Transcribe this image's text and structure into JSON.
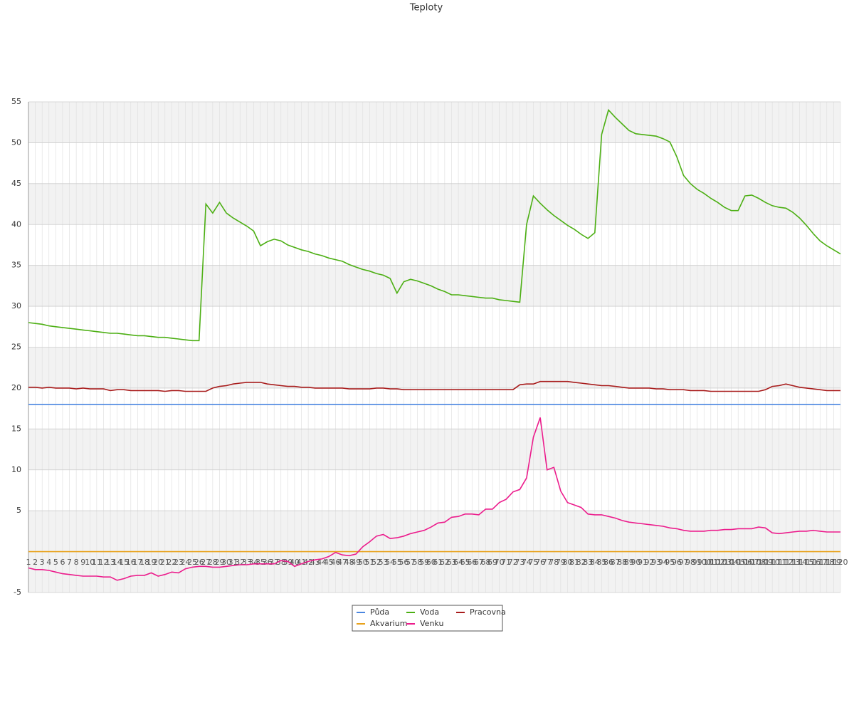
{
  "chart_data": {
    "type": "line",
    "title": "Teploty",
    "categories": [
      1,
      2,
      3,
      4,
      5,
      6,
      7,
      8,
      9,
      10,
      11,
      12,
      13,
      14,
      15,
      16,
      17,
      18,
      19,
      20,
      21,
      22,
      23,
      24,
      25,
      26,
      27,
      28,
      29,
      30,
      31,
      32,
      33,
      34,
      35,
      36,
      37,
      38,
      39,
      40,
      41,
      42,
      43,
      44,
      45,
      46,
      47,
      48,
      49,
      50,
      51,
      52,
      53,
      54,
      55,
      56,
      57,
      58,
      59,
      60,
      61,
      62,
      63,
      64,
      65,
      66,
      67,
      68,
      69,
      70,
      71,
      72,
      73,
      74,
      75,
      76,
      77,
      78,
      79,
      80,
      81,
      82,
      83,
      84,
      85,
      86,
      87,
      88,
      89,
      90,
      91,
      92,
      93,
      94,
      95,
      96,
      97,
      98,
      99,
      100,
      101,
      102,
      103,
      104,
      105,
      106,
      107,
      108,
      109,
      110,
      111,
      112,
      113,
      114,
      115,
      116,
      117,
      118,
      119,
      120
    ],
    "ylim": [
      -5,
      55
    ],
    "yticks": [
      -5,
      5,
      10,
      15,
      20,
      25,
      30,
      35,
      40,
      45,
      50,
      55
    ],
    "grid": true,
    "legend": "bottom",
    "series": [
      {
        "name": "Půda",
        "color": "#4a86e0",
        "values": [
          18,
          18,
          18,
          18,
          18,
          18,
          18,
          18,
          18,
          18,
          18,
          18,
          18,
          18,
          18,
          18,
          18,
          18,
          18,
          18,
          18,
          18,
          18,
          18,
          18,
          18,
          18,
          18,
          18,
          18,
          18,
          18,
          18,
          18,
          18,
          18,
          18,
          18,
          18,
          18,
          18,
          18,
          18,
          18,
          18,
          18,
          18,
          18,
          18,
          18,
          18,
          18,
          18,
          18,
          18,
          18,
          18,
          18,
          18,
          18,
          18,
          18,
          18,
          18,
          18,
          18,
          18,
          18,
          18,
          18,
          18,
          18,
          18,
          18,
          18,
          18,
          18,
          18,
          18,
          18,
          18,
          18,
          18,
          18,
          18,
          18,
          18,
          18,
          18,
          18,
          18,
          18,
          18,
          18,
          18,
          18,
          18,
          18,
          18,
          18,
          18,
          18,
          18,
          18,
          18,
          18,
          18,
          18,
          18,
          18,
          18,
          18,
          18,
          18,
          18,
          18,
          18,
          18,
          18,
          18
        ]
      },
      {
        "name": "Voda",
        "color": "#4caf13",
        "values": [
          28,
          27.9,
          27.8,
          27.6,
          27.5,
          27.4,
          27.3,
          27.2,
          27.1,
          27,
          26.9,
          26.8,
          26.7,
          26.7,
          26.6,
          26.5,
          26.4,
          26.4,
          26.3,
          26.2,
          26.2,
          26.1,
          26,
          25.9,
          25.8,
          25.8,
          42.5,
          41.4,
          42.7,
          41.4,
          40.8,
          40.3,
          39.8,
          39.2,
          37.4,
          37.9,
          38.2,
          38,
          37.5,
          37.2,
          36.9,
          36.7,
          36.4,
          36.2,
          35.9,
          35.7,
          35.5,
          35.1,
          34.8,
          34.5,
          34.3,
          34,
          33.8,
          33.4,
          31.6,
          33,
          33.3,
          33.1,
          32.8,
          32.5,
          32.1,
          31.8,
          31.4,
          31.4,
          31.3,
          31.2,
          31.1,
          31,
          31,
          30.8,
          30.7,
          30.6,
          30.5,
          40,
          43.5,
          42.6,
          41.8,
          41.1,
          40.5,
          39.9,
          39.4,
          38.8,
          38.3,
          39,
          51,
          54,
          53.1,
          52.3,
          51.5,
          51.1,
          51,
          50.9,
          50.8,
          50.5,
          50.1,
          48.3,
          46,
          45,
          44.3,
          43.8,
          43.2,
          42.7,
          42.1,
          41.7,
          41.7,
          43.5,
          43.6,
          43.2,
          42.7,
          42.3,
          42.1,
          42,
          41.5,
          40.8,
          39.9,
          38.9,
          38,
          37.4,
          36.9,
          36.4
        ]
      },
      {
        "name": "Pracovna",
        "color": "#a81c1c",
        "values": [
          20.1,
          20.1,
          20,
          20.1,
          20,
          20,
          20,
          19.9,
          20,
          19.9,
          19.9,
          19.9,
          19.7,
          19.8,
          19.8,
          19.7,
          19.7,
          19.7,
          19.7,
          19.7,
          19.6,
          19.7,
          19.7,
          19.6,
          19.6,
          19.6,
          19.6,
          20,
          20.2,
          20.3,
          20.5,
          20.6,
          20.7,
          20.7,
          20.7,
          20.5,
          20.4,
          20.3,
          20.2,
          20.2,
          20.1,
          20.1,
          20,
          20,
          20,
          20,
          20,
          19.9,
          19.9,
          19.9,
          19.9,
          20,
          20,
          19.9,
          19.9,
          19.8,
          19.8,
          19.8,
          19.8,
          19.8,
          19.8,
          19.8,
          19.8,
          19.8,
          19.8,
          19.8,
          19.8,
          19.8,
          19.8,
          19.8,
          19.8,
          19.8,
          20.4,
          20.5,
          20.5,
          20.8,
          20.8,
          20.8,
          20.8,
          20.8,
          20.7,
          20.6,
          20.5,
          20.4,
          20.3,
          20.3,
          20.2,
          20.1,
          20,
          20,
          20,
          20,
          19.9,
          19.9,
          19.8,
          19.8,
          19.8,
          19.7,
          19.7,
          19.7,
          19.6,
          19.6,
          19.6,
          19.6,
          19.6,
          19.6,
          19.6,
          19.6,
          19.8,
          20.2,
          20.3,
          20.5,
          20.3,
          20.1,
          20,
          19.9,
          19.8,
          19.7,
          19.7,
          19.7
        ]
      },
      {
        "name": "Akvarium",
        "color": "#e8a21c",
        "values": [
          0,
          0,
          0,
          0,
          0,
          0,
          0,
          0,
          0,
          0,
          0,
          0,
          0,
          0,
          0,
          0,
          0,
          0,
          0,
          0,
          0,
          0,
          0,
          0,
          0,
          0,
          0,
          0,
          0,
          0,
          0,
          0,
          0,
          0,
          0,
          0,
          0,
          0,
          0,
          0,
          0,
          0,
          0,
          0,
          0,
          0,
          0,
          0,
          0,
          0,
          0,
          0,
          0,
          0,
          0,
          0,
          0,
          0,
          0,
          0,
          0,
          0,
          0,
          0,
          0,
          0,
          0,
          0,
          0,
          0,
          0,
          0,
          0,
          0,
          0,
          0,
          0,
          0,
          0,
          0,
          0,
          0,
          0,
          0,
          0,
          0,
          0,
          0,
          0,
          0,
          0,
          0,
          0,
          0,
          0,
          0,
          0,
          0,
          0,
          0,
          0,
          0,
          0,
          0,
          0,
          0,
          0,
          0,
          0,
          0,
          0,
          0,
          0,
          0,
          0,
          0,
          0,
          0,
          0,
          0
        ]
      },
      {
        "name": "Venku",
        "color": "#ec1c8c",
        "values": [
          -2,
          -2.2,
          -2.2,
          -2.3,
          -2.5,
          -2.7,
          -2.8,
          -2.9,
          -3,
          -3,
          -3,
          -3.1,
          -3.1,
          -3.5,
          -3.3,
          -3,
          -2.9,
          -2.9,
          -2.6,
          -3,
          -2.8,
          -2.5,
          -2.6,
          -2.1,
          -1.9,
          -1.8,
          -1.8,
          -1.9,
          -1.9,
          -1.8,
          -1.7,
          -1.6,
          -1.6,
          -1.5,
          -1.5,
          -1.5,
          -1.5,
          -1.1,
          -1.2,
          -1.8,
          -1.5,
          -1.2,
          -1,
          -0.9,
          -0.6,
          -0.1,
          -0.4,
          -0.5,
          -0.3,
          0.6,
          1.2,
          1.9,
          2.1,
          1.6,
          1.7,
          1.9,
          2.2,
          2.4,
          2.6,
          3,
          3.5,
          3.6,
          4.2,
          4.3,
          4.6,
          4.6,
          4.5,
          5.2,
          5.2,
          6,
          6.4,
          7.3,
          7.6,
          9,
          14,
          16.4,
          10,
          10.3,
          7.4,
          6,
          5.7,
          5.4,
          4.6,
          4.5,
          4.5,
          4.3,
          4.1,
          3.8,
          3.6,
          3.5,
          3.4,
          3.3,
          3.2,
          3.1,
          2.9,
          2.8,
          2.6,
          2.5,
          2.5,
          2.5,
          2.6,
          2.6,
          2.7,
          2.7,
          2.8,
          2.8,
          2.8,
          3,
          2.9,
          2.3,
          2.2,
          2.3,
          2.4,
          2.5,
          2.5,
          2.6,
          2.5,
          2.4,
          2.4,
          2.4
        ]
      }
    ]
  }
}
